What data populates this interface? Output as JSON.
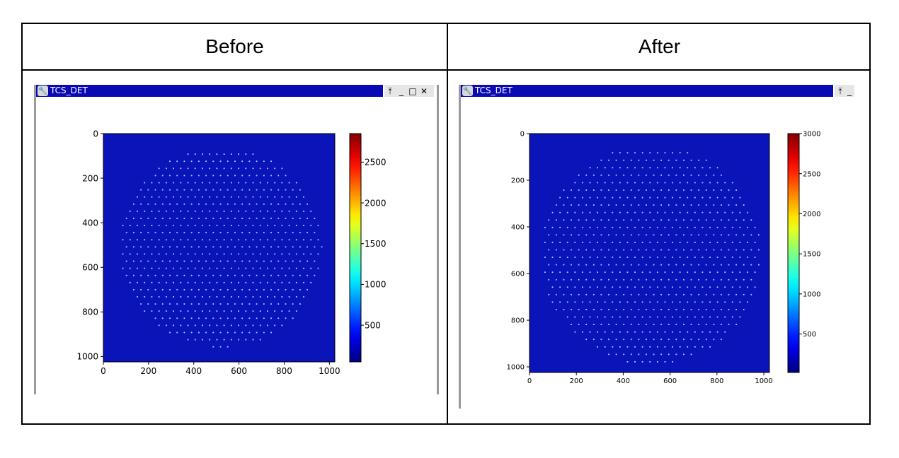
{
  "headers": {
    "before": "Before",
    "after": "After"
  },
  "windows": {
    "before": {
      "title": "TCS_DET",
      "controls": [
        "⤒",
        "_",
        "□",
        "✕"
      ]
    },
    "after": {
      "title": "TCS_DET",
      "controls": [
        "⤒",
        "_"
      ]
    }
  },
  "chart_data": [
    {
      "type": "heatmap",
      "panel": "before",
      "x_ticks": [
        0,
        200,
        400,
        600,
        800,
        1000
      ],
      "y_ticks": [
        0,
        200,
        400,
        600,
        800,
        1000
      ],
      "xlim": [
        0,
        1024
      ],
      "ylim": [
        1024,
        0
      ],
      "colorbar_ticks": [
        500,
        1000,
        1500,
        2000,
        2500
      ],
      "colorbar_range": [
        50,
        2850
      ],
      "colormap": "jet",
      "background_color": "#0b14b8",
      "spot_pitch": 32,
      "spot_region_center": [
        520,
        510
      ],
      "spot_region_radius": 450
    },
    {
      "type": "heatmap",
      "panel": "after",
      "x_ticks": [
        0,
        200,
        400,
        600,
        800,
        1000
      ],
      "y_ticks": [
        0,
        200,
        400,
        600,
        800,
        1000
      ],
      "xlim": [
        0,
        1024
      ],
      "ylim": [
        1024,
        0
      ],
      "colorbar_ticks": [
        500,
        1000,
        1500,
        2000,
        2500,
        3000
      ],
      "colorbar_range": [
        20,
        3000
      ],
      "colormap": "jet",
      "background_color": "#0b14b8",
      "spot_pitch": 32,
      "spot_region_center": [
        520,
        520
      ],
      "spot_region_radius": 470
    }
  ]
}
